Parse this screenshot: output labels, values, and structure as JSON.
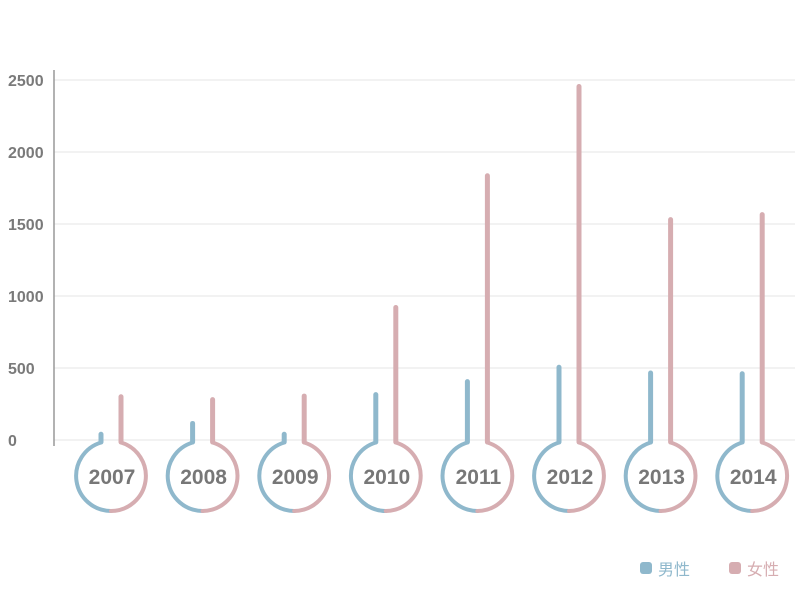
{
  "chart_data": {
    "type": "bar",
    "categories": [
      "2007",
      "2008",
      "2009",
      "2010",
      "2011",
      "2012",
      "2013",
      "2014"
    ],
    "series": [
      {
        "name": "男性",
        "color": "#8fb8cc",
        "values": [
          40,
          115,
          40,
          315,
          405,
          505,
          465,
          460
        ]
      },
      {
        "name": "女性",
        "color": "#d6adb1",
        "values": [
          300,
          280,
          305,
          920,
          1835,
          2455,
          1530,
          1565
        ]
      }
    ],
    "yticks": [
      0,
      500,
      1000,
      1500,
      2000,
      2500
    ],
    "ylim": [
      0,
      2500
    ],
    "grid": true,
    "legend_position": "bottom-right"
  },
  "legend": {
    "male": "男性",
    "female": "女性"
  }
}
